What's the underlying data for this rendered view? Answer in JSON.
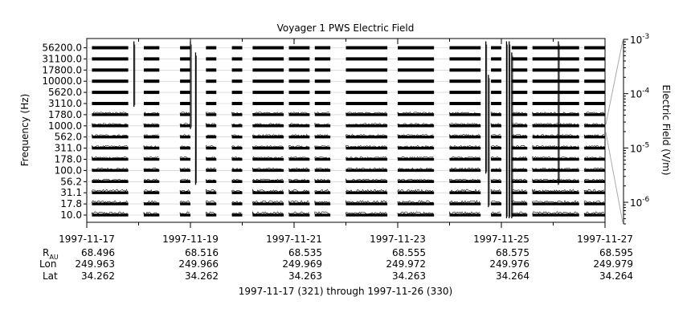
{
  "chart_data": {
    "type": "line",
    "title": "Voyager 1 PWS Electric Field",
    "ylabel": "Frequency (Hz)",
    "y2label": "Electric Field (V/m)",
    "channels": [
      "10.0",
      "17.8",
      "31.1",
      "56.2",
      "100.0",
      "178.0",
      "311.0",
      "562.0",
      "1000.0",
      "1780.0",
      "3110.0",
      "5620.0",
      "10000.0",
      "17800.0",
      "31100.0",
      "56200.0"
    ],
    "x_ticks": [
      "1997-11-17",
      "1997-11-19",
      "1997-11-21",
      "1997-11-23",
      "1997-11-25",
      "1997-11-27"
    ],
    "xlim": [
      "1997-11-17",
      "1997-11-27"
    ],
    "colorbar": {
      "scale": "log",
      "ylim": [
        4e-07,
        0.001
      ],
      "ticks": [
        {
          "mantissa": "10",
          "exp": "-3",
          "value": 0.001
        },
        {
          "mantissa": "10",
          "exp": "-4",
          "value": 0.0001
        },
        {
          "mantissa": "10",
          "exp": "-5",
          "value": 1e-05
        },
        {
          "mantissa": "10",
          "exp": "-6",
          "value": 1e-06
        }
      ]
    },
    "ephemeris": {
      "row_labels": {
        "r": "R",
        "r_sub": "AU",
        "lon": "Lon",
        "lat": "Lat"
      },
      "columns": [
        {
          "date": "1997-11-17",
          "r": "68.496",
          "lon": "249.963",
          "lat": "34.262"
        },
        {
          "date": "1997-11-19",
          "r": "68.516",
          "lon": "249.966",
          "lat": "34.262"
        },
        {
          "date": "1997-11-21",
          "r": "68.535",
          "lon": "249.969",
          "lat": "34.263"
        },
        {
          "date": "1997-11-23",
          "r": "68.555",
          "lon": "249.972",
          "lat": "34.263"
        },
        {
          "date": "1997-11-25",
          "r": "68.575",
          "lon": "249.976",
          "lat": "34.264"
        },
        {
          "date": "1997-11-27",
          "r": "68.595",
          "lon": "249.979",
          "lat": "34.264"
        }
      ]
    },
    "data_segments_days": [
      [
        0.1,
        0.8
      ],
      [
        1.1,
        1.4
      ],
      [
        1.8,
        2.0
      ],
      [
        2.3,
        2.5
      ],
      [
        2.8,
        3.0
      ],
      [
        3.2,
        3.8
      ],
      [
        3.9,
        4.3
      ],
      [
        4.4,
        4.7
      ],
      [
        5.0,
        5.8
      ],
      [
        6.0,
        6.7
      ],
      [
        7.0,
        7.6
      ],
      [
        7.8,
        8.0
      ],
      [
        8.2,
        8.5
      ],
      [
        8.6,
        9.5
      ],
      [
        9.6,
        10.0
      ]
    ],
    "bursts": [
      {
        "day": 0.91,
        "lo": 10,
        "hi": 15
      },
      {
        "day": 2.0,
        "lo": 8,
        "hi": 15
      },
      {
        "day": 2.1,
        "lo": 3,
        "hi": 14
      },
      {
        "day": 7.7,
        "lo": 4,
        "hi": 15
      },
      {
        "day": 7.75,
        "lo": 1,
        "hi": 12
      },
      {
        "day": 8.1,
        "lo": 0,
        "hi": 15
      },
      {
        "day": 8.15,
        "lo": 0,
        "hi": 15
      },
      {
        "day": 8.2,
        "lo": 0,
        "hi": 14
      },
      {
        "day": 9.1,
        "lo": 3,
        "hi": 15
      }
    ],
    "caption": "1997-11-17 (321) through 1997-11-26 (330)"
  }
}
